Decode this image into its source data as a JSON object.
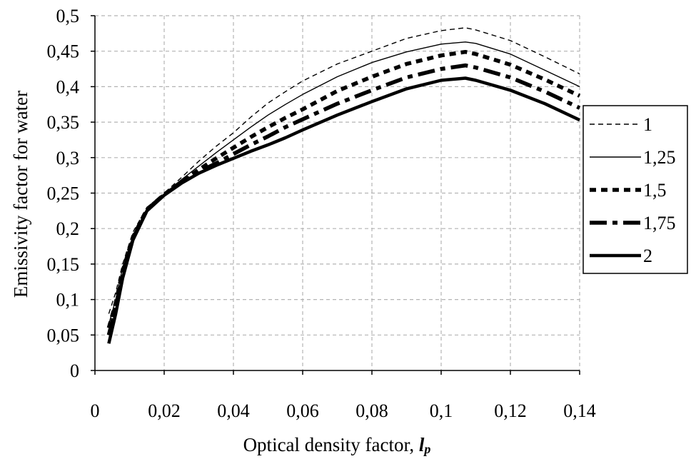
{
  "chart_data": {
    "type": "line",
    "title": "",
    "xlabel": "Optical density factor, ",
    "xlabel_symbol": "l",
    "xlabel_subscript": "p",
    "ylabel": "Emissivity  factor for water",
    "xlim": [
      0,
      0.14
    ],
    "ylim": [
      0,
      0.5
    ],
    "grid": true,
    "legend_position": "right",
    "x_ticks": [
      "0",
      "0,02",
      "0,04",
      "0,06",
      "0,08",
      "0,1",
      "0,12",
      "0,14"
    ],
    "y_ticks": [
      "0",
      "0,05",
      "0,1",
      "0,15",
      "0,2",
      "0,25",
      "0,3",
      "0,35",
      "0,4",
      "0,45",
      "0,5"
    ],
    "x": [
      0.004,
      0.006,
      0.008,
      0.011,
      0.015,
      0.02,
      0.025,
      0.03,
      0.035,
      0.04,
      0.045,
      0.05,
      0.055,
      0.06,
      0.07,
      0.08,
      0.09,
      0.1,
      0.107,
      0.11,
      0.12,
      0.13,
      0.14
    ],
    "series": [
      {
        "name": "1",
        "style": "thin-dashed",
        "values": [
          0.08,
          0.11,
          0.15,
          0.195,
          0.23,
          0.25,
          0.272,
          0.295,
          0.316,
          0.335,
          0.357,
          0.377,
          0.393,
          0.408,
          0.432,
          0.45,
          0.468,
          0.479,
          0.483,
          0.48,
          0.465,
          0.442,
          0.418
        ]
      },
      {
        "name": "1,25",
        "style": "thin-solid",
        "values": [
          0.065,
          0.1,
          0.145,
          0.19,
          0.228,
          0.249,
          0.269,
          0.288,
          0.307,
          0.325,
          0.343,
          0.36,
          0.375,
          0.389,
          0.414,
          0.434,
          0.449,
          0.46,
          0.463,
          0.461,
          0.446,
          0.423,
          0.4
        ]
      },
      {
        "name": "1,5",
        "style": "thick-dotted",
        "values": [
          0.06,
          0.095,
          0.14,
          0.188,
          0.227,
          0.248,
          0.266,
          0.283,
          0.299,
          0.314,
          0.329,
          0.343,
          0.356,
          0.368,
          0.394,
          0.414,
          0.432,
          0.444,
          0.449,
          0.446,
          0.431,
          0.41,
          0.387
        ]
      },
      {
        "name": "1,75",
        "style": "thick-dashdot",
        "values": [
          0.05,
          0.088,
          0.135,
          0.186,
          0.226,
          0.248,
          0.265,
          0.28,
          0.292,
          0.305,
          0.318,
          0.33,
          0.343,
          0.354,
          0.376,
          0.395,
          0.413,
          0.425,
          0.43,
          0.427,
          0.413,
          0.393,
          0.37
        ]
      },
      {
        "name": "2",
        "style": "thick-solid",
        "values": [
          0.038,
          0.08,
          0.13,
          0.184,
          0.225,
          0.247,
          0.264,
          0.278,
          0.289,
          0.299,
          0.309,
          0.318,
          0.328,
          0.339,
          0.36,
          0.379,
          0.397,
          0.409,
          0.412,
          0.409,
          0.395,
          0.376,
          0.353
        ]
      }
    ]
  }
}
